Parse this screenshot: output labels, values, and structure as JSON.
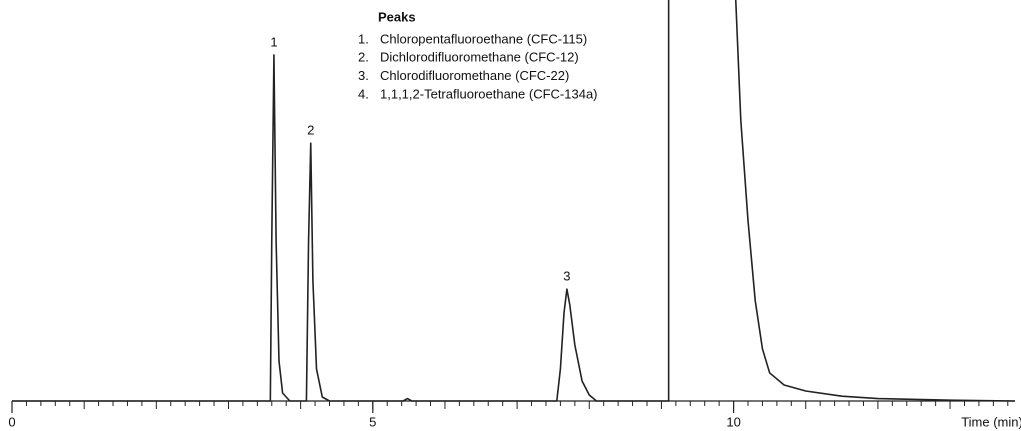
{
  "chart_data": {
    "type": "line",
    "xlabel": "Time (min)",
    "xlim": [
      0,
      13.9
    ],
    "ylim": [
      0,
      100
    ],
    "xticks": [
      0,
      5,
      10
    ],
    "minor_tick_step": 0.2,
    "series": [
      {
        "color": "#222222",
        "x": [
          0,
          3.58,
          3.6,
          3.63,
          3.66,
          3.7,
          3.75,
          3.85,
          4.08,
          4.11,
          4.14,
          4.17,
          4.22,
          4.3,
          4.4,
          5.42,
          5.48,
          5.54,
          7.55,
          7.6,
          7.65,
          7.69,
          7.73,
          7.8,
          7.9,
          8.0,
          8.1,
          9.1,
          9.1,
          10.0,
          10.03,
          10.1,
          10.2,
          10.3,
          10.4,
          10.5,
          10.7,
          11,
          11.5,
          12,
          13,
          13.9
        ],
        "values": [
          0,
          0,
          40,
          86.3,
          40,
          10,
          2,
          0,
          0,
          40,
          64.3,
          30,
          8,
          1,
          0,
          0,
          0.6,
          0,
          0,
          8,
          22,
          27.9,
          24,
          14,
          5,
          1.5,
          0,
          0,
          110,
          110,
          100,
          70,
          45,
          25,
          13,
          7,
          4,
          2.5,
          1.2,
          0.6,
          0.2,
          0
        ]
      }
    ],
    "peak_labels": [
      {
        "text": "1",
        "x": 3.63
      },
      {
        "text": "2",
        "x": 4.14
      },
      {
        "text": "3",
        "x": 7.69
      }
    ],
    "legend": {
      "title": "Peaks",
      "items": [
        {
          "number": "1.",
          "name": "Chloropentafluoroethane (CFC-115)"
        },
        {
          "number": "2.",
          "name": "Dichlorodifluoromethane (CFC-12)"
        },
        {
          "number": "3.",
          "name": "Chlorodifluoromethane (CFC-22)"
        },
        {
          "number": "4.",
          "name": "1,1,1,2-Tetrafluoroethane (CFC-134a)"
        }
      ]
    }
  }
}
